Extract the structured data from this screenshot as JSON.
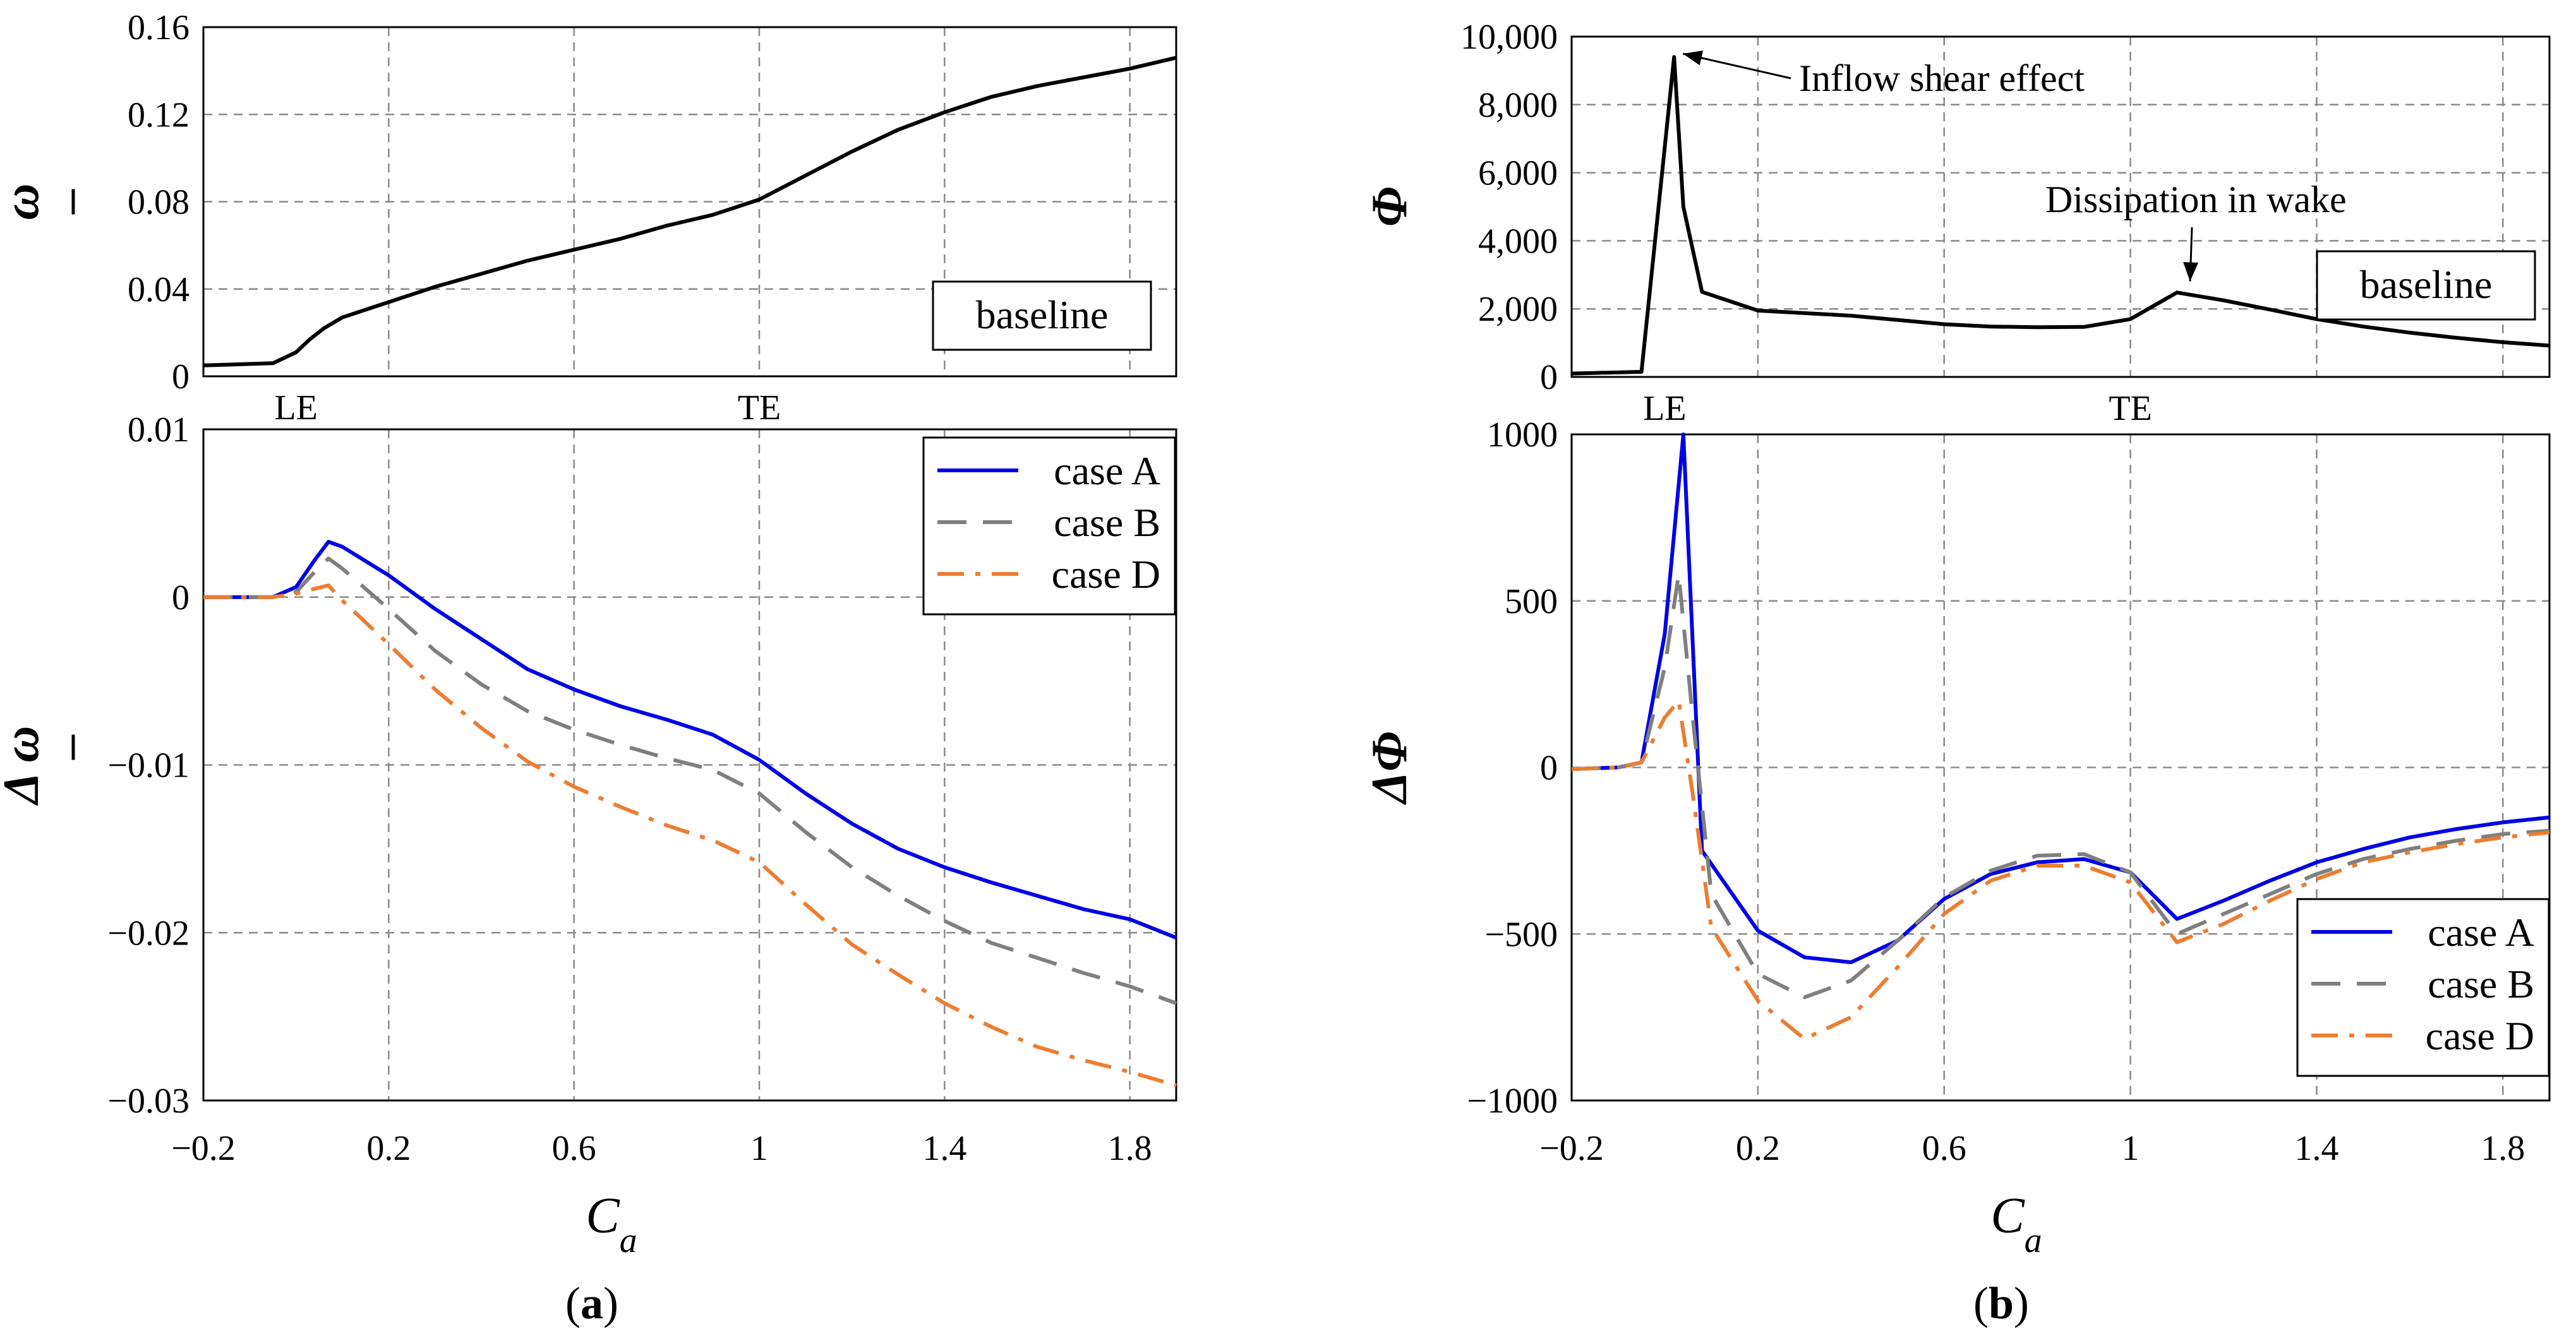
{
  "figure": {
    "caption_a_open": "(",
    "caption_a_letter": "a",
    "caption_a_close": ")",
    "caption_b_open": "(",
    "caption_b_letter": "b",
    "caption_b_close": ")",
    "xlabel_main": "C",
    "xlabel_sub": "a"
  },
  "colors": {
    "caseA": "#0000e6",
    "caseB": "#7f7f7f",
    "caseD": "#ed7d31",
    "baseline": "#000000"
  },
  "chart_data": [
    {
      "id": "a_top",
      "type": "line",
      "ylabel": "ω",
      "ylabel_overbar": true,
      "xlim": [
        -0.2,
        1.9
      ],
      "ylim": [
        0,
        0.16
      ],
      "yticks": [
        0,
        0.04,
        0.08,
        0.12,
        0.16
      ],
      "ytick_labels": [
        "0",
        "0.04",
        "0.08",
        "0.12",
        "0.16"
      ],
      "xticks": [
        -0.2,
        0.2,
        0.6,
        1.0,
        1.4,
        1.8
      ],
      "xtick_labels": [],
      "grid": true,
      "marker_labels": [
        {
          "x": 0,
          "text": "LE"
        },
        {
          "x": 1,
          "text": "TE"
        }
      ],
      "legend": {
        "position": "bottom-right",
        "entries": [
          "baseline"
        ]
      },
      "series": [
        {
          "name": "baseline",
          "style": "solid",
          "x": [
            -0.2,
            -0.05,
            0,
            0.03,
            0.06,
            0.1,
            0.2,
            0.3,
            0.4,
            0.5,
            0.6,
            0.7,
            0.8,
            0.9,
            1.0,
            1.1,
            1.2,
            1.3,
            1.4,
            1.5,
            1.6,
            1.7,
            1.8,
            1.9
          ],
          "y": [
            0.005,
            0.006,
            0.011,
            0.017,
            0.022,
            0.027,
            0.034,
            0.041,
            0.047,
            0.053,
            0.058,
            0.063,
            0.069,
            0.074,
            0.081,
            0.092,
            0.103,
            0.113,
            0.121,
            0.128,
            0.133,
            0.137,
            0.141,
            0.146
          ]
        }
      ]
    },
    {
      "id": "a_bottom",
      "type": "line",
      "ylabel": "Δ ω",
      "ylabel_overbar": true,
      "xlabel": "Ca",
      "xlim": [
        -0.2,
        1.9
      ],
      "ylim": [
        -0.03,
        0.01
      ],
      "yticks": [
        -0.03,
        -0.02,
        -0.01,
        0,
        0.01
      ],
      "ytick_labels": [
        "−0.03",
        "−0.02",
        "−0.01",
        "0",
        "0.01"
      ],
      "xticks": [
        -0.2,
        0.2,
        0.6,
        1.0,
        1.4,
        1.8
      ],
      "xtick_labels": [
        "−0.2",
        "0.2",
        "0.6",
        "1",
        "1.4",
        "1.8"
      ],
      "grid": true,
      "legend": {
        "position": "top-right",
        "entries": [
          "case A",
          "case B",
          "case D"
        ]
      },
      "series": [
        {
          "name": "case A",
          "style": "solid",
          "x": [
            -0.2,
            -0.05,
            0,
            0.04,
            0.07,
            0.1,
            0.2,
            0.3,
            0.4,
            0.5,
            0.6,
            0.7,
            0.8,
            0.9,
            1.0,
            1.1,
            1.2,
            1.3,
            1.4,
            1.5,
            1.6,
            1.7,
            1.8,
            1.9
          ],
          "y": [
            0,
            0,
            0.0006,
            0.0022,
            0.0033,
            0.003,
            0.0013,
            -0.0007,
            -0.0025,
            -0.0043,
            -0.0055,
            -0.0065,
            -0.0073,
            -0.0082,
            -0.0097,
            -0.0117,
            -0.0135,
            -0.015,
            -0.0161,
            -0.017,
            -0.0178,
            -0.0186,
            -0.0192,
            -0.0203
          ]
        },
        {
          "name": "case B",
          "style": "dash",
          "x": [
            -0.2,
            -0.05,
            0,
            0.04,
            0.07,
            0.1,
            0.2,
            0.3,
            0.4,
            0.5,
            0.6,
            0.7,
            0.8,
            0.9,
            1.0,
            1.1,
            1.2,
            1.3,
            1.4,
            1.5,
            1.6,
            1.7,
            1.8,
            1.9
          ],
          "y": [
            0,
            0,
            0.0003,
            0.0015,
            0.0023,
            0.0017,
            -0.0007,
            -0.0032,
            -0.0052,
            -0.0068,
            -0.0079,
            -0.0088,
            -0.0096,
            -0.0103,
            -0.0117,
            -0.014,
            -0.0161,
            -0.0178,
            -0.0193,
            -0.0206,
            -0.0215,
            -0.0224,
            -0.0232,
            -0.0242
          ]
        },
        {
          "name": "case D",
          "style": "dashdot",
          "x": [
            -0.2,
            -0.05,
            0,
            0.04,
            0.07,
            0.1,
            0.2,
            0.3,
            0.4,
            0.5,
            0.6,
            0.7,
            0.8,
            0.9,
            1.0,
            1.1,
            1.2,
            1.3,
            1.4,
            1.5,
            1.6,
            1.7,
            1.8,
            1.9
          ],
          "y": [
            0,
            0,
            0.0002,
            0.0005,
            0.0007,
            -0.0002,
            -0.0028,
            -0.0055,
            -0.0078,
            -0.0098,
            -0.0113,
            -0.0125,
            -0.0136,
            -0.0145,
            -0.0158,
            -0.0183,
            -0.0207,
            -0.0225,
            -0.0242,
            -0.0256,
            -0.0268,
            -0.0276,
            -0.0283,
            -0.0291
          ]
        }
      ]
    },
    {
      "id": "b_top",
      "type": "line",
      "ylabel": "Φ",
      "xlim": [
        -0.2,
        1.9
      ],
      "ylim": [
        0,
        10000
      ],
      "yticks": [
        0,
        2000,
        4000,
        6000,
        8000,
        10000
      ],
      "ytick_labels": [
        "0",
        "2,000",
        "4,000",
        "6,000",
        "8,000",
        "10,000"
      ],
      "xticks": [
        -0.2,
        0.2,
        0.6,
        1.0,
        1.4,
        1.8
      ],
      "xtick_labels": [],
      "grid": true,
      "marker_labels": [
        {
          "x": 0,
          "text": "LE"
        },
        {
          "x": 1,
          "text": "TE"
        }
      ],
      "annotations": [
        {
          "text": "Inflow shear effect",
          "x": 0.02,
          "y": 9350
        },
        {
          "text": "Dissipation in wake",
          "x": 1.12,
          "y": 2550
        }
      ],
      "legend": {
        "position": "bottom-right",
        "entries": [
          "baseline"
        ]
      },
      "series": [
        {
          "name": "baseline",
          "style": "solid",
          "x": [
            -0.2,
            -0.05,
            0.02,
            0.04,
            0.08,
            0.2,
            0.4,
            0.6,
            0.7,
            0.8,
            0.9,
            1.0,
            1.1,
            1.2,
            1.3,
            1.4,
            1.5,
            1.6,
            1.7,
            1.8,
            1.9
          ],
          "y": [
            100,
            150,
            9400,
            5000,
            2500,
            1950,
            1800,
            1550,
            1480,
            1460,
            1470,
            1700,
            2480,
            2250,
            1980,
            1700,
            1480,
            1300,
            1150,
            1020,
            920
          ]
        }
      ]
    },
    {
      "id": "b_bottom",
      "type": "line",
      "ylabel": "ΔΦ",
      "xlabel": "Ca",
      "xlim": [
        -0.2,
        1.9
      ],
      "ylim": [
        -1000,
        1000
      ],
      "yticks": [
        -1000,
        -500,
        0,
        500,
        1000
      ],
      "ytick_labels": [
        "−1000",
        "−500",
        "0",
        "500",
        "1000"
      ],
      "xticks": [
        -0.2,
        0.2,
        0.6,
        1.0,
        1.4,
        1.8
      ],
      "xtick_labels": [
        "−0.2",
        "0.2",
        "0.6",
        "1",
        "1.4",
        "1.8"
      ],
      "grid": true,
      "legend": {
        "position": "bottom-right",
        "entries": [
          "case A",
          "case B",
          "case D"
        ]
      },
      "series": [
        {
          "name": "case A",
          "style": "solid",
          "x": [
            -0.2,
            -0.1,
            -0.05,
            0,
            0.04,
            0.08,
            0.2,
            0.3,
            0.4,
            0.5,
            0.6,
            0.7,
            0.8,
            0.9,
            1.0,
            1.1,
            1.2,
            1.3,
            1.4,
            1.5,
            1.6,
            1.7,
            1.8,
            1.9
          ],
          "y": [
            -5,
            0,
            15,
            400,
            1050,
            -250,
            -490,
            -570,
            -585,
            -520,
            -395,
            -320,
            -285,
            -275,
            -315,
            -455,
            -400,
            -340,
            -285,
            -245,
            -210,
            -185,
            -165,
            -150
          ]
        },
        {
          "name": "case B",
          "style": "dash",
          "x": [
            -0.2,
            -0.1,
            -0.05,
            0,
            0.03,
            0.06,
            0.1,
            0.2,
            0.3,
            0.4,
            0.5,
            0.6,
            0.7,
            0.8,
            0.9,
            1.0,
            1.1,
            1.2,
            1.3,
            1.4,
            1.5,
            1.6,
            1.7,
            1.8,
            1.9
          ],
          "y": [
            -5,
            0,
            15,
            300,
            580,
            150,
            -380,
            -620,
            -690,
            -640,
            -520,
            -390,
            -310,
            -265,
            -260,
            -315,
            -500,
            -440,
            -380,
            -320,
            -275,
            -245,
            -220,
            -200,
            -190
          ]
        },
        {
          "name": "case D",
          "style": "dashdot",
          "x": [
            -0.2,
            -0.1,
            -0.05,
            0,
            0.03,
            0.06,
            0.1,
            0.2,
            0.3,
            0.4,
            0.5,
            0.6,
            0.7,
            0.8,
            0.9,
            1.0,
            1.1,
            1.2,
            1.3,
            1.4,
            1.5,
            1.6,
            1.7,
            1.8,
            1.9
          ],
          "y": [
            -5,
            0,
            15,
            150,
            200,
            -80,
            -480,
            -700,
            -815,
            -750,
            -600,
            -440,
            -340,
            -295,
            -295,
            -345,
            -525,
            -470,
            -400,
            -335,
            -285,
            -255,
            -230,
            -210,
            -195
          ]
        }
      ]
    }
  ]
}
